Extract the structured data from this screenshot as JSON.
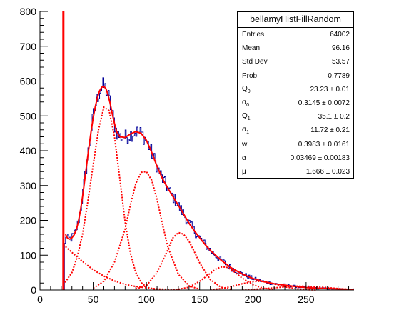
{
  "chart_data": {
    "type": "histogram",
    "title": "",
    "xlabel": "",
    "ylabel": "",
    "xlim": [
      0,
      295
    ],
    "ylim": [
      0,
      800
    ],
    "x_ticks": [
      "0",
      "50",
      "100",
      "150",
      "200",
      "250"
    ],
    "x_tick_values": [
      0,
      50,
      100,
      150,
      200,
      250
    ],
    "y_ticks": [
      "0",
      "100",
      "200",
      "300",
      "400",
      "500",
      "600",
      "700",
      "800"
    ],
    "y_tick_values": [
      0,
      100,
      200,
      300,
      400,
      500,
      600,
      700,
      800
    ],
    "histogram_color": "#000099",
    "fit_color": "#ff0000",
    "fit_function": {
      "x": [
        22,
        24,
        26,
        28,
        30,
        32,
        34,
        36,
        38,
        40,
        42,
        44,
        46,
        48,
        50,
        52,
        54,
        56,
        58,
        60,
        62,
        64,
        66,
        68,
        70,
        72,
        75,
        80,
        85,
        90,
        95,
        100,
        105,
        110,
        115,
        120,
        125,
        130,
        135,
        140,
        145,
        150,
        155,
        160,
        170,
        180,
        190,
        200,
        210,
        220,
        230,
        240,
        250,
        260,
        270,
        280,
        290,
        295
      ],
      "y": [
        800,
        160,
        148,
        146,
        150,
        158,
        172,
        195,
        228,
        268,
        315,
        363,
        410,
        455,
        495,
        527,
        553,
        572,
        582,
        585,
        578,
        560,
        535,
        505,
        478,
        455,
        440,
        438,
        448,
        455,
        450,
        430,
        395,
        355,
        320,
        293,
        268,
        243,
        218,
        192,
        170,
        150,
        131,
        114,
        86,
        63,
        46,
        33,
        24,
        18,
        14,
        10,
        7,
        5,
        4,
        3,
        2,
        2
      ]
    },
    "components": [
      {
        "x": [
          22,
          30,
          40,
          50,
          60,
          70,
          80,
          90,
          100,
          110,
          120,
          130
        ],
        "y": [
          130,
          108,
          82,
          58,
          40,
          26,
          16,
          10,
          6,
          3,
          2,
          1
        ]
      },
      {
        "x": [
          22,
          30,
          35,
          40,
          45,
          50,
          55,
          60,
          65,
          70,
          75,
          80,
          85,
          90,
          95,
          100,
          110
        ],
        "y": [
          15,
          50,
          95,
          160,
          255,
          360,
          460,
          525,
          515,
          440,
          320,
          195,
          105,
          50,
          22,
          8,
          1
        ]
      },
      {
        "x": [
          50,
          60,
          70,
          80,
          85,
          90,
          95,
          100,
          105,
          110,
          115,
          120,
          130,
          140,
          150
        ],
        "y": [
          5,
          25,
          80,
          175,
          245,
          305,
          338,
          340,
          315,
          260,
          190,
          125,
          45,
          12,
          2
        ]
      },
      {
        "x": [
          90,
          100,
          110,
          120,
          125,
          130,
          135,
          140,
          145,
          150,
          160,
          170,
          180
        ],
        "y": [
          3,
          12,
          50,
          115,
          150,
          165,
          160,
          140,
          110,
          78,
          30,
          8,
          2
        ]
      },
      {
        "x": [
          130,
          140,
          150,
          160,
          165,
          170,
          175,
          180,
          185,
          190,
          200,
          210,
          220
        ],
        "y": [
          2,
          8,
          25,
          48,
          60,
          66,
          66,
          58,
          46,
          34,
          15,
          5,
          1
        ]
      },
      {
        "x": [
          160,
          170,
          180,
          190,
          200,
          205,
          210,
          220,
          230,
          240,
          250,
          260
        ],
        "y": [
          1,
          4,
          10,
          18,
          24,
          25,
          24,
          17,
          9,
          4,
          1,
          0
        ]
      },
      {
        "x": [
          190,
          200,
          210,
          220,
          230,
          240,
          245,
          250,
          260,
          270,
          280,
          290,
          295
        ],
        "y": [
          1,
          2,
          4,
          6,
          9,
          11,
          11,
          11,
          9,
          7,
          4,
          2,
          1
        ]
      }
    ],
    "stats": {
      "title": "bellamyHistFillRandom",
      "rows": [
        {
          "label": "Entries",
          "sub": "",
          "value": "64002"
        },
        {
          "label": "Mean",
          "sub": "",
          "value": "96.16"
        },
        {
          "label": "Std Dev",
          "sub": "",
          "value": "53.57"
        },
        {
          "label": "Prob",
          "sub": "",
          "value": "0.7789"
        },
        {
          "label": "Q",
          "sub": "0",
          "value": "23.23 ± 0.01"
        },
        {
          "label": "σ",
          "sub": "0",
          "value": "0.3145 ± 0.0072"
        },
        {
          "label": "Q",
          "sub": "1",
          "value": "35.1 ± 0.2"
        },
        {
          "label": "σ",
          "sub": "1",
          "value": "11.72 ± 0.21"
        },
        {
          "label": "w",
          "sub": "",
          "value": "0.3983 ± 0.0161"
        },
        {
          "label": "α",
          "sub": "",
          "value": "0.03469 ± 0.00183"
        },
        {
          "label": "μ",
          "sub": "",
          "value": "1.666 ± 0.023"
        }
      ]
    }
  }
}
